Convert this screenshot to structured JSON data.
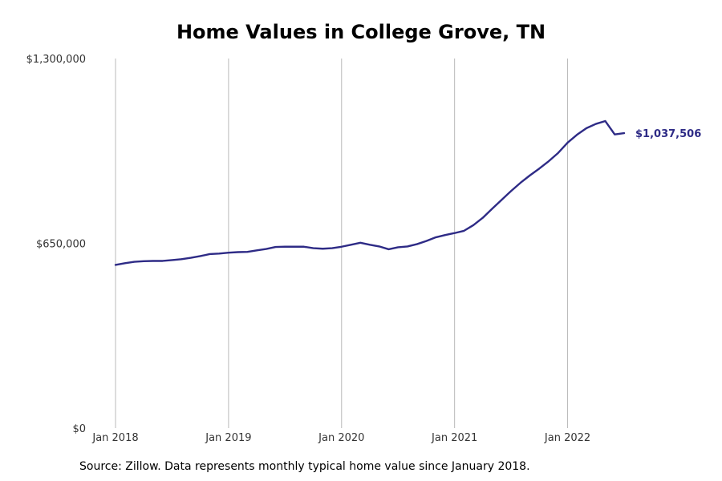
{
  "chart_data": {
    "type": "line",
    "title": "Home Values in College Grove, TN",
    "xlabel": "",
    "ylabel": "",
    "ylim": [
      0,
      1300000
    ],
    "xlim": [
      "2018-01",
      "2022-07"
    ],
    "y_ticks": [
      {
        "value": 0,
        "label": "$0"
      },
      {
        "value": 650000,
        "label": "$650,000"
      },
      {
        "value": 1300000,
        "label": "$1,300,000"
      }
    ],
    "x_ticks": [
      {
        "value": "2018-01",
        "label": "Jan 2018"
      },
      {
        "value": "2019-01",
        "label": "Jan 2019"
      },
      {
        "value": "2020-01",
        "label": "Jan 2020"
      },
      {
        "value": "2021-01",
        "label": "Jan 2021"
      },
      {
        "value": "2022-01",
        "label": "Jan 2022"
      }
    ],
    "grid": "vertical",
    "color": "#2e2b86",
    "end_label": "$1,037,506",
    "series": [
      {
        "x": [
          "2018-01",
          "2018-02",
          "2018-03",
          "2018-04",
          "2018-05",
          "2018-06",
          "2018-07",
          "2018-08",
          "2018-09",
          "2018-10",
          "2018-11",
          "2018-12",
          "2019-01",
          "2019-02",
          "2019-03",
          "2019-04",
          "2019-05",
          "2019-06",
          "2019-07",
          "2019-08",
          "2019-09",
          "2019-10",
          "2019-11",
          "2019-12",
          "2020-01",
          "2020-02",
          "2020-03",
          "2020-04",
          "2020-05",
          "2020-06",
          "2020-07",
          "2020-08",
          "2020-09",
          "2020-10",
          "2020-11",
          "2020-12",
          "2021-01",
          "2021-02",
          "2021-03",
          "2021-04",
          "2021-05",
          "2021-06",
          "2021-07",
          "2021-08",
          "2021-09",
          "2021-10",
          "2021-11",
          "2021-12",
          "2022-01",
          "2022-02",
          "2022-03",
          "2022-04",
          "2022-05",
          "2022-06",
          "2022-07"
        ],
        "values": [
          574000,
          580000,
          585000,
          587000,
          588000,
          588000,
          591000,
          594000,
          599000,
          605000,
          612000,
          614000,
          617000,
          619000,
          620000,
          625000,
          630000,
          637000,
          638000,
          638000,
          638000,
          633000,
          631000,
          633000,
          638000,
          645000,
          652000,
          645000,
          639000,
          629000,
          636000,
          639000,
          647000,
          658000,
          671000,
          679000,
          686000,
          694000,
          714000,
          740000,
          772000,
          803000,
          834000,
          863000,
          889000,
          913000,
          939000,
          968000,
          1004000,
          1032000,
          1055000,
          1070000,
          1080000,
          1033000,
          1037506
        ]
      }
    ]
  },
  "source_note": "Source: Zillow. Data represents monthly typical home value since January 2018."
}
